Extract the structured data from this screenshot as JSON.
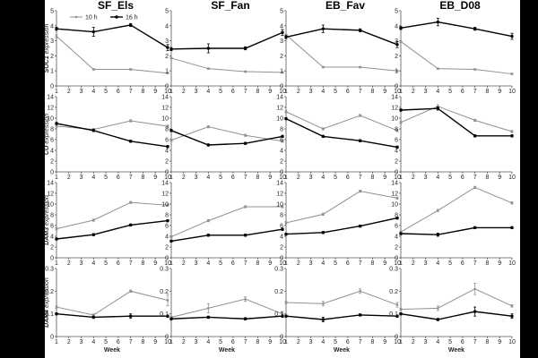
{
  "chart_data": {
    "type": "line",
    "x": [
      1,
      4,
      7,
      10
    ],
    "xticks": [
      1,
      2,
      3,
      4,
      5,
      6,
      7,
      8,
      9,
      10
    ],
    "xlabel": "Week",
    "columns": [
      "SF_Els",
      "SF_Fan",
      "EB_Fav",
      "EB_D08"
    ],
    "legend": [
      {
        "name": "10 h",
        "color": "#909090"
      },
      {
        "name": "16 h",
        "color": "#000000"
      }
    ],
    "rows": [
      {
        "ylabel_italic": "SOC1",
        "ylabel_rest": " expression",
        "ylim": [
          0,
          5
        ],
        "yticks": [
          0,
          1,
          2,
          3,
          4,
          5
        ],
        "ytick_labels": [
          "0",
          "1",
          "2",
          "3",
          "4",
          "5"
        ],
        "panels": [
          {
            "series": [
              {
                "name": "10 h",
                "values": [
                  3.3,
                  1.1,
                  1.1,
                  0.85
                ],
                "err": [
                  0.1,
                  0.05,
                  0.05,
                  0.05
                ]
              },
              {
                "name": "16 h",
                "values": [
                  3.8,
                  3.6,
                  4.05,
                  2.55
                ],
                "err": [
                  0.1,
                  0.3,
                  0.1,
                  0.2
                ]
              }
            ]
          },
          {
            "series": [
              {
                "name": "10 h",
                "values": [
                  1.85,
                  1.15,
                  0.95,
                  0.9
                ],
                "err": [
                  0.05,
                  0.05,
                  0.05,
                  0.05
                ]
              },
              {
                "name": "16 h",
                "values": [
                  2.45,
                  2.5,
                  2.5,
                  3.55
                ],
                "err": [
                  0.1,
                  0.3,
                  0.1,
                  0.2
                ]
              }
            ]
          },
          {
            "series": [
              {
                "name": "10 h",
                "values": [
                  3.4,
                  1.25,
                  1.25,
                  1.0
                ],
                "err": [
                  0.05,
                  0.05,
                  0.05,
                  0.05
                ]
              },
              {
                "name": "16 h",
                "values": [
                  3.25,
                  3.8,
                  3.7,
                  2.75
                ],
                "err": [
                  0.1,
                  0.25,
                  0.1,
                  0.2
                ]
              }
            ]
          },
          {
            "series": [
              {
                "name": "10 h",
                "values": [
                  2.95,
                  1.15,
                  1.1,
                  0.8
                ],
                "err": [
                  0.05,
                  0.05,
                  0.05,
                  0.05
                ]
              },
              {
                "name": "16 h",
                "values": [
                  3.85,
                  4.25,
                  3.8,
                  3.3
                ],
                "err": [
                  0.1,
                  0.25,
                  0.1,
                  0.2
                ]
              }
            ]
          }
        ]
      },
      {
        "ylabel_italic": "CO",
        "ylabel_rest": " expression",
        "ylim": [
          0,
          14
        ],
        "yticks": [
          0,
          2,
          4,
          6,
          8,
          10,
          12,
          14
        ],
        "ytick_labels": [
          "0",
          "2",
          "4",
          "6",
          "8",
          "10",
          "12",
          "14"
        ],
        "panels": [
          {
            "series": [
              {
                "name": "10 h",
                "values": [
                  8.5,
                  7.9,
                  9.5,
                  8.5
                ],
                "err": [
                  0.2,
                  0.2,
                  0.2,
                  0.2
                ]
              },
              {
                "name": "16 h",
                "values": [
                  9.0,
                  7.7,
                  5.7,
                  4.7
                ],
                "err": [
                  0.2,
                  0.2,
                  0.2,
                  0.2
                ]
              }
            ]
          },
          {
            "series": [
              {
                "name": "10 h",
                "values": [
                  5.9,
                  8.4,
                  6.8,
                  5.7
                ],
                "err": [
                  0.2,
                  0.2,
                  0.2,
                  0.2
                ]
              },
              {
                "name": "16 h",
                "values": [
                  7.7,
                  5.0,
                  5.3,
                  6.6
                ],
                "err": [
                  0.2,
                  0.2,
                  0.2,
                  0.2
                ]
              }
            ]
          },
          {
            "series": [
              {
                "name": "10 h",
                "values": [
                  11.2,
                  8.0,
                  10.5,
                  7.7
                ],
                "err": [
                  0.2,
                  0.2,
                  0.2,
                  0.2
                ]
              },
              {
                "name": "16 h",
                "values": [
                  9.9,
                  6.6,
                  5.8,
                  4.6
                ],
                "err": [
                  0.2,
                  0.2,
                  0.2,
                  0.2
                ]
              }
            ]
          },
          {
            "series": [
              {
                "name": "10 h",
                "values": [
                  9.2,
                  12.2,
                  9.6,
                  7.5
                ],
                "err": [
                  0.2,
                  0.3,
                  0.2,
                  0.2
                ]
              },
              {
                "name": "16 h",
                "values": [
                  11.5,
                  11.8,
                  6.7,
                  6.7
                ],
                "err": [
                  0.2,
                  0.3,
                  0.2,
                  0.2
                ]
              }
            ]
          }
        ]
      },
      {
        "ylabel_italic": "DAM3",
        "ylabel_rest": " expression",
        "ylim": [
          0,
          14
        ],
        "yticks": [
          0,
          2,
          4,
          6,
          8,
          10,
          12,
          14
        ],
        "ytick_labels": [
          "0",
          "2",
          "4",
          "6",
          "8",
          "10",
          "12",
          "14"
        ],
        "panels": [
          {
            "series": [
              {
                "name": "10 h",
                "values": [
                  5.4,
                  7.0,
                  10.3,
                  9.8
                ],
                "err": [
                  0.2,
                  0.2,
                  0.2,
                  0.2
                ]
              },
              {
                "name": "16 h",
                "values": [
                  3.5,
                  4.3,
                  6.1,
                  6.9
                ],
                "err": [
                  0.2,
                  0.2,
                  0.2,
                  0.2
                ]
              }
            ]
          },
          {
            "series": [
              {
                "name": "10 h",
                "values": [
                  3.9,
                  6.9,
                  9.5,
                  9.5
                ],
                "err": [
                  0.2,
                  0.2,
                  0.2,
                  0.2
                ]
              },
              {
                "name": "16 h",
                "values": [
                  3.1,
                  4.2,
                  4.2,
                  5.3
                ],
                "err": [
                  0.2,
                  0.2,
                  0.2,
                  0.2
                ]
              }
            ]
          },
          {
            "series": [
              {
                "name": "10 h",
                "values": [
                  6.5,
                  8.1,
                  12.4,
                  11.1
                ],
                "err": [
                  0.2,
                  0.2,
                  0.2,
                  0.2
                ]
              },
              {
                "name": "16 h",
                "values": [
                  4.4,
                  4.7,
                  5.9,
                  7.4
                ],
                "err": [
                  0.2,
                  0.2,
                  0.2,
                  0.2
                ]
              }
            ]
          },
          {
            "series": [
              {
                "name": "10 h",
                "values": [
                  4.8,
                  8.8,
                  13.1,
                  10.2
                ],
                "err": [
                  0.2,
                  0.2,
                  0.2,
                  0.2
                ]
              },
              {
                "name": "16 h",
                "values": [
                  4.5,
                  4.3,
                  5.6,
                  5.6
                ],
                "err": [
                  0.2,
                  0.3,
                  0.2,
                  0.2
                ]
              }
            ]
          }
        ]
      },
      {
        "ylabel_italic": "DAM4",
        "ylabel_rest": " expression",
        "ylim": [
          0,
          0.3
        ],
        "yticks": [
          0,
          0.1,
          0.2,
          0.3
        ],
        "ytick_labels": [
          "0",
          "0.1",
          "0.2",
          "0.3"
        ],
        "panels": [
          {
            "series": [
              {
                "name": "10 h",
                "values": [
                  0.13,
                  0.095,
                  0.2,
                  0.16
                ],
                "err": [
                  0.005,
                  0.005,
                  0.005,
                  0.025
                ]
              },
              {
                "name": "16 h",
                "values": [
                  0.1,
                  0.085,
                  0.09,
                  0.09
                ],
                "err": [
                  0.005,
                  0.005,
                  0.01,
                  0.005
                ]
              }
            ]
          },
          {
            "series": [
              {
                "name": "10 h",
                "values": [
                  0.085,
                  0.125,
                  0.165,
                  0.1
                ],
                "err": [
                  0.005,
                  0.02,
                  0.01,
                  0.01
                ]
              },
              {
                "name": "16 h",
                "values": [
                  0.078,
                  0.085,
                  0.078,
                  0.09
                ],
                "err": [
                  0.005,
                  0.005,
                  0.005,
                  0.005
                ]
              }
            ]
          },
          {
            "series": [
              {
                "name": "10 h",
                "values": [
                  0.15,
                  0.145,
                  0.2,
                  0.14
                ],
                "err": [
                  0.005,
                  0.01,
                  0.01,
                  0.01
                ]
              },
              {
                "name": "16 h",
                "values": [
                  0.09,
                  0.075,
                  0.095,
                  0.09
                ],
                "err": [
                  0.005,
                  0.01,
                  0.005,
                  0.005
                ]
              }
            ]
          },
          {
            "series": [
              {
                "name": "10 h",
                "values": [
                  0.12,
                  0.125,
                  0.21,
                  0.135
                ],
                "err": [
                  0.005,
                  0.01,
                  0.025,
                  0.005
                ]
              },
              {
                "name": "16 h",
                "values": [
                  0.1,
                  0.075,
                  0.11,
                  0.09
                ],
                "err": [
                  0.005,
                  0.005,
                  0.02,
                  0.01
                ]
              }
            ]
          }
        ]
      }
    ]
  }
}
